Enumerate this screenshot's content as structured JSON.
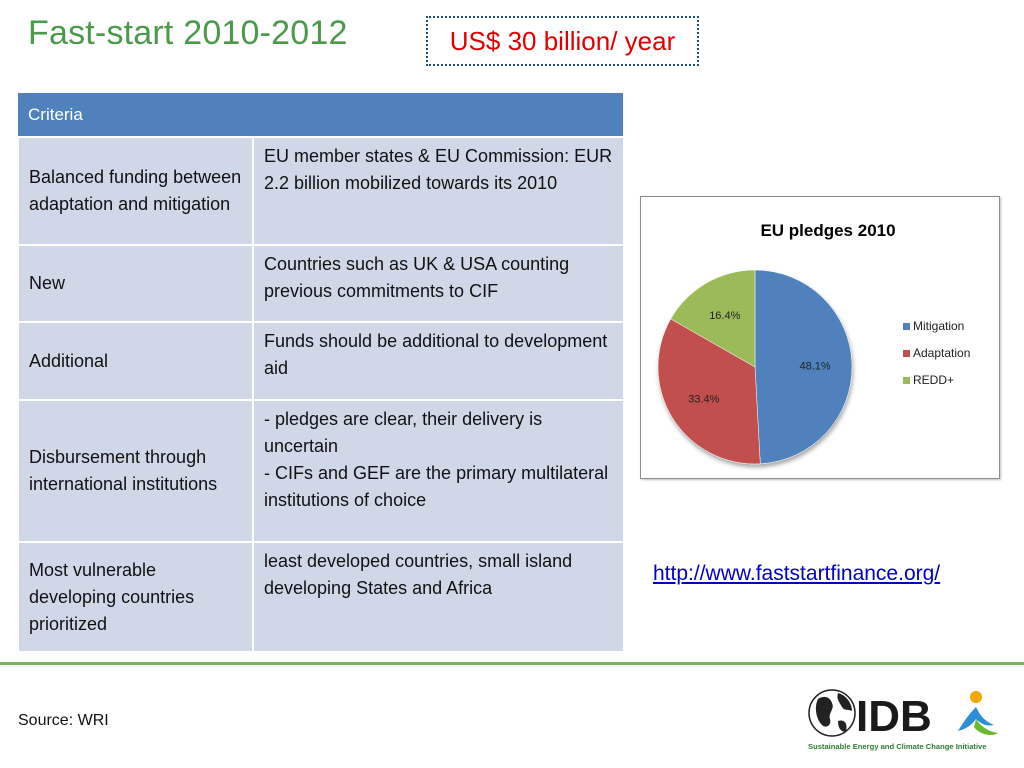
{
  "slide": {
    "title": "Fast-start 2010-2012",
    "highlight": "US$ 30 billion/ year",
    "source": "Source: WRI",
    "link_text": "http://www.faststartfinance.org/"
  },
  "table": {
    "header": "Criteria",
    "rows": [
      {
        "criterion": "Balanced funding between adaptation and mitigation",
        "detail": [
          "EU member states & EU Commission: EUR 2.2 billion mobilized towards its 2010"
        ]
      },
      {
        "criterion": "New",
        "detail": [
          "Countries such as UK & USA counting previous commitments to CIF"
        ]
      },
      {
        "criterion": "Additional",
        "detail": [
          "Funds should be additional to development aid"
        ]
      },
      {
        "criterion": "Disbursement through international institutions",
        "detail": [
          "- pledges are clear, their delivery is uncertain",
          "- CIFs and GEF are the primary multilateral institutions of choice"
        ]
      },
      {
        "criterion": "Most vulnerable developing countries prioritized",
        "detail": [
          "least developed countries, small island developing States and Africa"
        ]
      }
    ]
  },
  "chart_data": {
    "type": "pie",
    "title": "EU pledges 2010",
    "categories": [
      "Mitigation",
      "Adaptation",
      "REDD+"
    ],
    "values": [
      48.1,
      33.4,
      16.4
    ],
    "labels": [
      "48.1%",
      "33.4%",
      "16.4%"
    ],
    "colors": [
      "#4f81bd",
      "#c0504d",
      "#9bbb59"
    ],
    "legend": "right"
  },
  "logo": {
    "text": "IDB",
    "tagline": "Sustainable Energy and Climate Change Initiative"
  },
  "colors": {
    "title": "#4a9a4a",
    "highlight": "#e00000",
    "table_header": "#4f81bd",
    "table_cell": "#d0d8e8",
    "divider": "#77b55a"
  }
}
